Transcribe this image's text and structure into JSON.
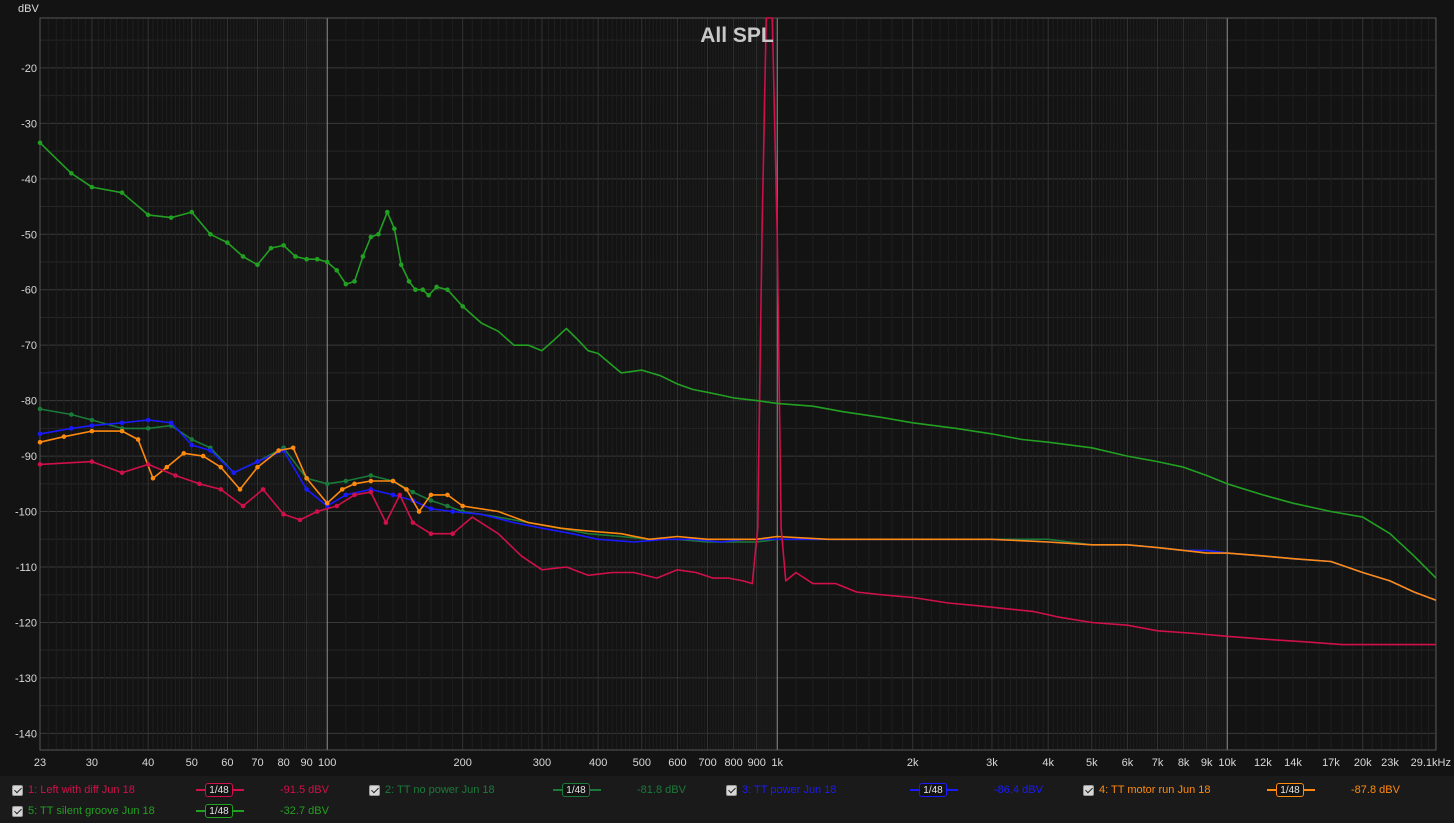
{
  "chart_data": {
    "type": "line",
    "title": "All SPL",
    "ylabel": "dBV",
    "xunit": "Hz",
    "xscale": "log",
    "xlim": [
      23,
      29100
    ],
    "ylim": [
      -143,
      -11
    ],
    "grid": true,
    "y_ticks": [
      -20,
      -30,
      -40,
      -50,
      -60,
      -70,
      -80,
      -90,
      -100,
      -110,
      -120,
      -130,
      -140
    ],
    "y_tick_labels": [
      "-20",
      "-30",
      "-40",
      "-50",
      "-60",
      "-70",
      "-80",
      "-90",
      "-100",
      "-110",
      "-120",
      "-130",
      "-140"
    ],
    "x_ticks": [
      23,
      30,
      40,
      50,
      60,
      70,
      80,
      90,
      100,
      200,
      300,
      400,
      500,
      600,
      700,
      800,
      900,
      1000,
      2000,
      3000,
      4000,
      5000,
      6000,
      7000,
      8000,
      9000,
      10000,
      12000,
      14000,
      17000,
      20000,
      23000,
      29100
    ],
    "x_tick_labels": [
      "23",
      "30",
      "40",
      "50",
      "60",
      "70",
      "80",
      "90",
      "100",
      "200",
      "300",
      "400",
      "500",
      "600",
      "700",
      "800",
      "900",
      "1k",
      "2k",
      "3k",
      "4k",
      "5k",
      "6k",
      "7k",
      "8k",
      "9k",
      "10k",
      "12k",
      "14k",
      "17k",
      "20k",
      "23k",
      "29.1kHz"
    ],
    "series": [
      {
        "name": "1: Left with diff  Jun 18",
        "color": "#d0104a",
        "smoothing": "1/48",
        "value": "-91.5 dBV",
        "points": [
          [
            23,
            -91.5
          ],
          [
            30,
            -91
          ],
          [
            35,
            -93
          ],
          [
            40,
            -91.5
          ],
          [
            46,
            -93.5
          ],
          [
            52,
            -95
          ],
          [
            58,
            -96
          ],
          [
            65,
            -99
          ],
          [
            72,
            -96
          ],
          [
            80,
            -100.5
          ],
          [
            87,
            -101.5
          ],
          [
            95,
            -100
          ],
          [
            105,
            -99
          ],
          [
            115,
            -97
          ],
          [
            125,
            -96.5
          ],
          [
            135,
            -102
          ],
          [
            145,
            -97
          ],
          [
            155,
            -102
          ],
          [
            170,
            -104
          ],
          [
            190,
            -104
          ],
          [
            210,
            -101
          ],
          [
            240,
            -104
          ],
          [
            270,
            -108
          ],
          [
            300,
            -110.5
          ],
          [
            340,
            -110
          ],
          [
            380,
            -111.5
          ],
          [
            430,
            -111
          ],
          [
            480,
            -111
          ],
          [
            540,
            -112
          ],
          [
            600,
            -110.5
          ],
          [
            660,
            -111
          ],
          [
            720,
            -112
          ],
          [
            780,
            -112
          ],
          [
            840,
            -112.5
          ],
          [
            880,
            -113
          ],
          [
            905,
            -103
          ],
          [
            925,
            -50
          ],
          [
            945,
            -11
          ],
          [
            975,
            -11
          ],
          [
            1000,
            -50
          ],
          [
            1020,
            -103
          ],
          [
            1045,
            -112.5
          ],
          [
            1100,
            -111
          ],
          [
            1200,
            -113
          ],
          [
            1350,
            -113
          ],
          [
            1500,
            -114.5
          ],
          [
            1700,
            -115
          ],
          [
            2000,
            -115.5
          ],
          [
            2400,
            -116.5
          ],
          [
            2800,
            -117
          ],
          [
            3200,
            -117.5
          ],
          [
            3700,
            -118
          ],
          [
            4200,
            -119
          ],
          [
            5000,
            -120
          ],
          [
            6000,
            -120.5
          ],
          [
            7000,
            -121.5
          ],
          [
            8500,
            -122
          ],
          [
            10000,
            -122.5
          ],
          [
            12000,
            -123
          ],
          [
            15000,
            -123.5
          ],
          [
            18000,
            -124
          ],
          [
            22000,
            -124
          ],
          [
            29100,
            -124
          ]
        ]
      },
      {
        "name": "2: TT no power Jun 18",
        "color": "#1a7a3a",
        "smoothing": "1/48",
        "value": "-81.8 dBV",
        "points": [
          [
            23,
            -81.5
          ],
          [
            27,
            -82.5
          ],
          [
            30,
            -83.5
          ],
          [
            35,
            -85
          ],
          [
            40,
            -85
          ],
          [
            45,
            -84.5
          ],
          [
            50,
            -87
          ],
          [
            55,
            -88.5
          ],
          [
            62,
            -93
          ],
          [
            70,
            -91
          ],
          [
            80,
            -88.5
          ],
          [
            90,
            -94
          ],
          [
            100,
            -95
          ],
          [
            110,
            -94.5
          ],
          [
            125,
            -93.5
          ],
          [
            140,
            -94.5
          ],
          [
            155,
            -96.5
          ],
          [
            170,
            -98
          ],
          [
            185,
            -99
          ],
          [
            200,
            -100
          ],
          [
            240,
            -101
          ],
          [
            280,
            -102
          ],
          [
            330,
            -103
          ],
          [
            380,
            -104
          ],
          [
            450,
            -104.5
          ],
          [
            520,
            -105
          ],
          [
            600,
            -105
          ],
          [
            700,
            -105.5
          ],
          [
            800,
            -105.5
          ],
          [
            900,
            -105.5
          ],
          [
            1000,
            -105
          ],
          [
            1300,
            -105
          ],
          [
            1600,
            -105
          ],
          [
            2000,
            -105
          ],
          [
            2500,
            -105
          ],
          [
            3000,
            -105
          ],
          [
            4000,
            -105
          ],
          [
            5000,
            -106
          ],
          [
            6000,
            -106
          ],
          [
            7000,
            -106.5
          ],
          [
            8000,
            -107
          ],
          [
            9000,
            -107
          ],
          [
            10000,
            -107.5
          ],
          [
            12000,
            -108
          ],
          [
            14000,
            -108.5
          ],
          [
            17000,
            -109
          ],
          [
            20000,
            -111
          ],
          [
            23000,
            -112.5
          ],
          [
            26000,
            -114.5
          ],
          [
            29100,
            -116
          ]
        ]
      },
      {
        "name": "3: TT power Jun 18",
        "color": "#1a1aff",
        "smoothing": "1/48",
        "value": "-86.4 dBV",
        "points": [
          [
            23,
            -86
          ],
          [
            27,
            -85
          ],
          [
            30,
            -84.5
          ],
          [
            35,
            -84
          ],
          [
            40,
            -83.5
          ],
          [
            45,
            -84
          ],
          [
            50,
            -88
          ],
          [
            55,
            -89
          ],
          [
            62,
            -93
          ],
          [
            70,
            -91
          ],
          [
            80,
            -89
          ],
          [
            90,
            -96
          ],
          [
            100,
            -99
          ],
          [
            110,
            -97
          ],
          [
            125,
            -96
          ],
          [
            140,
            -97
          ],
          [
            155,
            -98
          ],
          [
            170,
            -99.5
          ],
          [
            190,
            -100
          ],
          [
            220,
            -100.5
          ],
          [
            260,
            -102
          ],
          [
            300,
            -103
          ],
          [
            350,
            -104
          ],
          [
            400,
            -105
          ],
          [
            480,
            -105.5
          ],
          [
            560,
            -105
          ],
          [
            650,
            -105
          ],
          [
            750,
            -105.5
          ],
          [
            850,
            -105
          ],
          [
            1000,
            -105
          ],
          [
            1300,
            -105
          ],
          [
            1600,
            -105
          ],
          [
            2000,
            -105
          ],
          [
            2500,
            -105
          ],
          [
            3000,
            -105
          ],
          [
            4000,
            -105.5
          ],
          [
            5000,
            -106
          ],
          [
            6000,
            -106
          ],
          [
            7000,
            -106.5
          ],
          [
            8000,
            -107
          ],
          [
            9000,
            -107
          ],
          [
            10000,
            -107.5
          ],
          [
            12000,
            -108
          ],
          [
            14000,
            -108.5
          ],
          [
            17000,
            -109
          ],
          [
            20000,
            -111
          ],
          [
            23000,
            -112.5
          ],
          [
            26000,
            -114.5
          ],
          [
            29100,
            -116
          ]
        ]
      },
      {
        "name": "4: TT motor run Jun 18",
        "color": "#ff8a10",
        "smoothing": "1/48",
        "value": "-87.8 dBV",
        "points": [
          [
            23,
            -87.5
          ],
          [
            26,
            -86.5
          ],
          [
            30,
            -85.5
          ],
          [
            35,
            -85.5
          ],
          [
            38,
            -87
          ],
          [
            41,
            -94
          ],
          [
            44,
            -92
          ],
          [
            48,
            -89.5
          ],
          [
            53,
            -90
          ],
          [
            58,
            -92
          ],
          [
            64,
            -96
          ],
          [
            70,
            -92
          ],
          [
            78,
            -89
          ],
          [
            84,
            -88.5
          ],
          [
            90,
            -94
          ],
          [
            100,
            -98.5
          ],
          [
            108,
            -96
          ],
          [
            115,
            -95
          ],
          [
            125,
            -94.5
          ],
          [
            140,
            -94.5
          ],
          [
            150,
            -96
          ],
          [
            160,
            -100
          ],
          [
            170,
            -97
          ],
          [
            185,
            -97
          ],
          [
            200,
            -99
          ],
          [
            240,
            -100
          ],
          [
            280,
            -102
          ],
          [
            330,
            -103
          ],
          [
            380,
            -103.5
          ],
          [
            450,
            -104
          ],
          [
            520,
            -105
          ],
          [
            600,
            -104.5
          ],
          [
            700,
            -105
          ],
          [
            800,
            -105
          ],
          [
            900,
            -105
          ],
          [
            1000,
            -104.5
          ],
          [
            1300,
            -105
          ],
          [
            1600,
            -105
          ],
          [
            2000,
            -105
          ],
          [
            2500,
            -105
          ],
          [
            3000,
            -105
          ],
          [
            4000,
            -105.5
          ],
          [
            5000,
            -106
          ],
          [
            6000,
            -106
          ],
          [
            7000,
            -106.5
          ],
          [
            8000,
            -107
          ],
          [
            9000,
            -107.5
          ],
          [
            10000,
            -107.5
          ],
          [
            12000,
            -108
          ],
          [
            14000,
            -108.5
          ],
          [
            17000,
            -109
          ],
          [
            20000,
            -111
          ],
          [
            23000,
            -112.5
          ],
          [
            26000,
            -114.5
          ],
          [
            29100,
            -116
          ]
        ]
      },
      {
        "name": "5: TT silent groove Jun 18",
        "color": "#22a022",
        "smoothing": "1/48",
        "value": "-32.7 dBV",
        "points": [
          [
            23,
            -33.5
          ],
          [
            27,
            -39
          ],
          [
            30,
            -41.5
          ],
          [
            35,
            -42.5
          ],
          [
            40,
            -46.5
          ],
          [
            45,
            -47
          ],
          [
            50,
            -46
          ],
          [
            55,
            -50
          ],
          [
            60,
            -51.5
          ],
          [
            65,
            -54
          ],
          [
            70,
            -55.5
          ],
          [
            75,
            -52.5
          ],
          [
            80,
            -52
          ],
          [
            85,
            -54
          ],
          [
            90,
            -54.5
          ],
          [
            95,
            -54.5
          ],
          [
            100,
            -55
          ],
          [
            105,
            -56.5
          ],
          [
            110,
            -59
          ],
          [
            115,
            -58.5
          ],
          [
            120,
            -54
          ],
          [
            125,
            -50.5
          ],
          [
            130,
            -50
          ],
          [
            136,
            -46
          ],
          [
            141,
            -49
          ],
          [
            146,
            -55.5
          ],
          [
            152,
            -58.5
          ],
          [
            157,
            -60
          ],
          [
            163,
            -60
          ],
          [
            168,
            -61
          ],
          [
            175,
            -59.5
          ],
          [
            185,
            -60
          ],
          [
            200,
            -63
          ],
          [
            220,
            -66
          ],
          [
            240,
            -67.5
          ],
          [
            260,
            -70
          ],
          [
            280,
            -70
          ],
          [
            300,
            -71
          ],
          [
            320,
            -69
          ],
          [
            340,
            -67
          ],
          [
            360,
            -69
          ],
          [
            380,
            -71
          ],
          [
            400,
            -71.5
          ],
          [
            450,
            -75
          ],
          [
            500,
            -74.5
          ],
          [
            550,
            -75.5
          ],
          [
            600,
            -77
          ],
          [
            650,
            -78
          ],
          [
            700,
            -78.5
          ],
          [
            750,
            -79
          ],
          [
            800,
            -79.5
          ],
          [
            900,
            -80
          ],
          [
            1000,
            -80.5
          ],
          [
            1200,
            -81
          ],
          [
            1400,
            -82
          ],
          [
            1700,
            -83
          ],
          [
            2000,
            -84
          ],
          [
            2500,
            -85
          ],
          [
            3000,
            -86
          ],
          [
            3500,
            -87
          ],
          [
            4000,
            -87.5
          ],
          [
            5000,
            -88.5
          ],
          [
            6000,
            -90
          ],
          [
            7000,
            -91
          ],
          [
            8000,
            -92
          ],
          [
            9000,
            -93.5
          ],
          [
            10000,
            -95
          ],
          [
            12000,
            -97
          ],
          [
            14000,
            -98.5
          ],
          [
            17000,
            -100
          ],
          [
            20000,
            -101
          ],
          [
            23000,
            -104
          ],
          [
            26000,
            -108
          ],
          [
            29100,
            -112
          ]
        ]
      }
    ],
    "legend_position": "bottom"
  }
}
